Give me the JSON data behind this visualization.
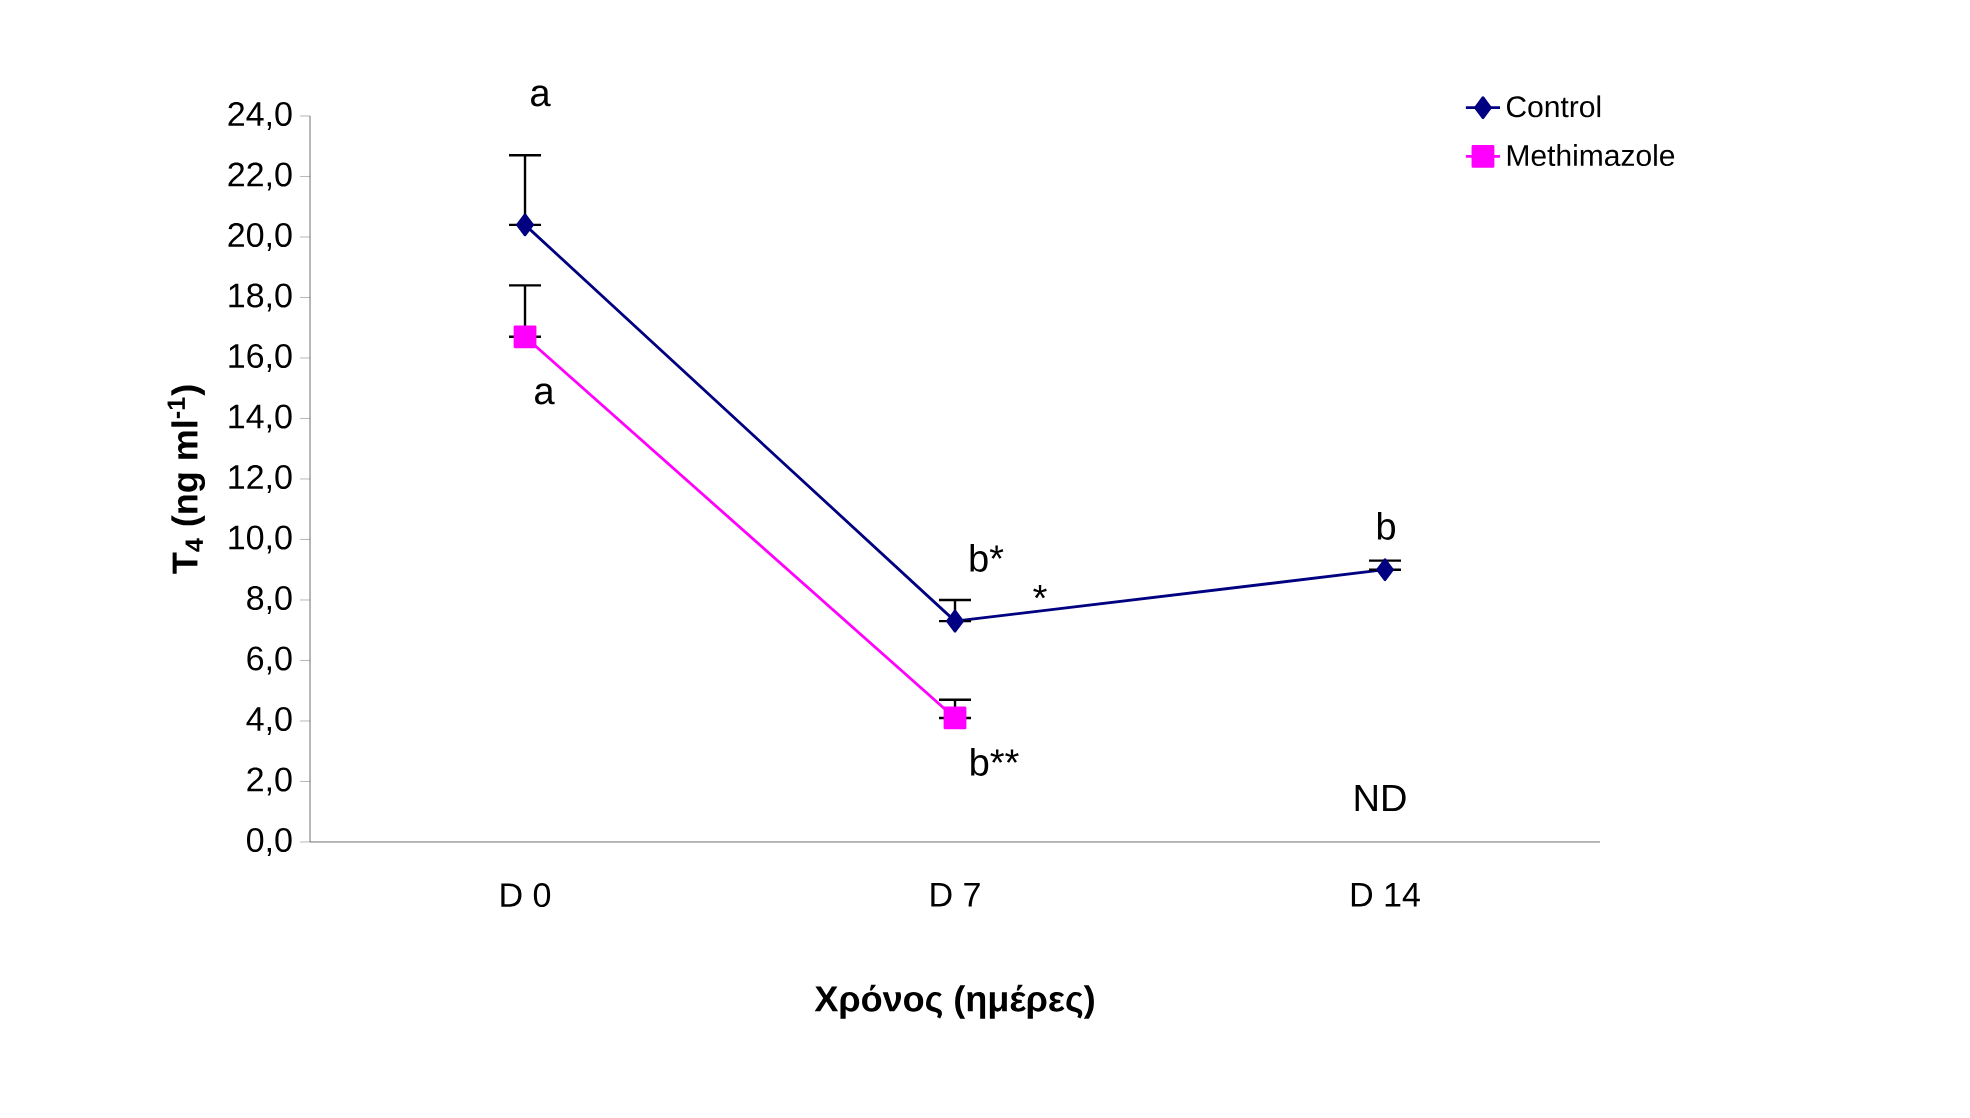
{
  "chart_data": {
    "type": "line",
    "xlabel": "Χρόνος (ημέρες)",
    "ylabel": "T$_{4}$ (ng ml$^{-1}$)",
    "categories": [
      "D  0",
      "D 7",
      "D 14"
    ],
    "series": [
      {
        "name": "Control",
        "color": "#000080",
        "marker": "diamond",
        "values": [
          20.4,
          7.3,
          9.0
        ],
        "errors": [
          [
            20.4,
            22.7
          ],
          [
            7.3,
            8.0
          ],
          [
            9.0,
            9.3
          ]
        ]
      },
      {
        "name": "Methimazole",
        "color": "#ff00ff",
        "marker": "square",
        "values": [
          16.7,
          4.1,
          null
        ],
        "errors": [
          [
            16.7,
            18.4
          ],
          [
            4.1,
            4.7
          ],
          null
        ]
      }
    ],
    "ylim": [
      0,
      24
    ],
    "yticks": [
      {
        "value": 0,
        "label": "0,0"
      },
      {
        "value": 2,
        "label": "2,0"
      },
      {
        "value": 4,
        "label": "4,0"
      },
      {
        "value": 6,
        "label": "6,0"
      },
      {
        "value": 8,
        "label": "8,0"
      },
      {
        "value": 10,
        "label": "10,0"
      },
      {
        "value": 12,
        "label": "12,0"
      },
      {
        "value": 14,
        "label": "14,0"
      },
      {
        "value": 16,
        "label": "16,0"
      },
      {
        "value": 18,
        "label": "18,0"
      },
      {
        "value": 20,
        "label": "20,0"
      },
      {
        "value": 22,
        "label": "22,0"
      },
      {
        "value": 24,
        "label": "24,0"
      }
    ],
    "annotations": [
      "a",
      "a",
      "b*",
      "*",
      "b**",
      "b",
      "ND"
    ],
    "legend": "top right",
    "grid": false
  }
}
